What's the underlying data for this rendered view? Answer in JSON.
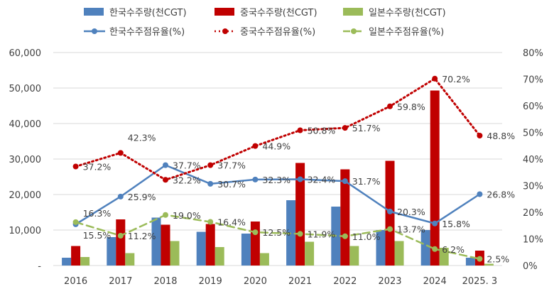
{
  "chart_data": {
    "type": "bar",
    "categories": [
      "2016",
      "2017",
      "2018",
      "2019",
      "2020",
      "2021",
      "2022",
      "2023",
      "2024",
      "2025. 3"
    ],
    "left_axis": {
      "ylim": [
        0,
        60000
      ],
      "ticks": [
        "-",
        "10,000",
        "20,000",
        "30,000",
        "40,000",
        "50,000",
        "60,000"
      ]
    },
    "right_axis": {
      "ylim": [
        0,
        80
      ],
      "ticks": [
        "0%",
        "10%",
        "20%",
        "30%",
        "40%",
        "50%",
        "60%",
        "70%",
        "80%"
      ]
    },
    "grid": true,
    "legend_position": "top",
    "bar_series": [
      {
        "name": "한국수주량(천CGT)",
        "color": "#4f81bd",
        "values": [
          2200,
          8000,
          13500,
          9500,
          9000,
          18400,
          16600,
          10000,
          10000,
          2200
        ]
      },
      {
        "name": "중국수주량(천CGT)",
        "color": "#c00000",
        "values": [
          5500,
          13000,
          11500,
          11700,
          12400,
          28900,
          27100,
          29500,
          49300,
          4200
        ]
      },
      {
        "name": "일본수주량(천CGT)",
        "color": "#9bbb59",
        "values": [
          2400,
          3500,
          6900,
          5200,
          3500,
          6700,
          5500,
          6900,
          5000,
          500
        ]
      }
    ],
    "line_series": [
      {
        "name": "한국수주점유율(%)",
        "color": "#4f81bd",
        "style": "solid",
        "values": [
          15.5,
          25.9,
          37.7,
          30.7,
          32.3,
          32.4,
          31.7,
          20.3,
          15.8,
          26.8
        ],
        "labels": [
          "15.5%",
          "25.9%",
          "37.7%",
          "30.7%",
          "32.3%",
          "32.4%",
          "31.7%",
          "20.3%",
          "15.8%",
          "26.8%"
        ]
      },
      {
        "name": "중국수주점유율(%)",
        "color": "#c00000",
        "style": "dotted",
        "values": [
          37.2,
          42.3,
          32.2,
          37.7,
          44.9,
          50.8,
          51.7,
          59.8,
          70.2,
          48.8
        ],
        "labels": [
          "37.2%",
          "42.3%",
          "32.2%",
          "37.7%",
          "44.9%",
          "50.8%",
          "51.7%",
          "59.8%",
          "70.2%",
          "48.8%"
        ]
      },
      {
        "name": "일본수주점유율(%)",
        "color": "#9bbb59",
        "style": "dashed",
        "values": [
          16.3,
          11.2,
          19.0,
          16.4,
          12.5,
          11.9,
          11.0,
          13.7,
          6.2,
          2.5
        ],
        "labels": [
          "16.3%",
          "11.2%",
          "19.0%",
          "16.4%",
          "12.5%",
          "11.9%",
          "11.0%",
          "13.7%",
          "6.2%",
          "2.5%"
        ]
      }
    ]
  }
}
